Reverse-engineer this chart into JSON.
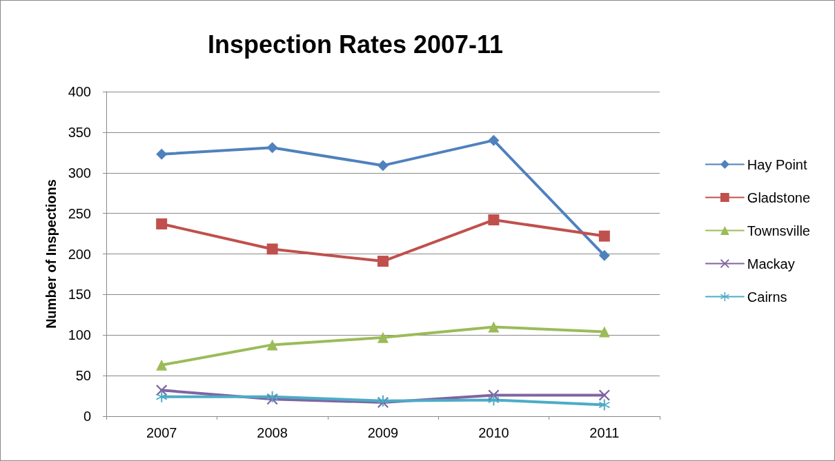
{
  "chart_data": {
    "type": "line",
    "title": "Inspection Rates 2007-11",
    "ylabel": "Number of Inspections",
    "categories": [
      "2007",
      "2008",
      "2009",
      "2010",
      "2011"
    ],
    "series": [
      {
        "name": "Hay Point",
        "color": "#4f81bd",
        "marker": "diamond",
        "values": [
          323,
          331,
          309,
          340,
          198
        ]
      },
      {
        "name": "Gladstone",
        "color": "#c0504d",
        "marker": "square",
        "values": [
          237,
          206,
          191,
          242,
          222
        ]
      },
      {
        "name": "Townsville",
        "color": "#9bbb59",
        "marker": "triangle",
        "values": [
          63,
          88,
          97,
          110,
          104
        ]
      },
      {
        "name": "Mackay",
        "color": "#8064a2",
        "marker": "cross",
        "values": [
          32,
          21,
          17,
          26,
          26
        ]
      },
      {
        "name": "Cairns",
        "color": "#4bacc6",
        "marker": "star",
        "values": [
          24,
          24,
          19,
          20,
          14
        ]
      }
    ],
    "ylim": [
      0,
      400
    ],
    "yticks": [
      0,
      50,
      100,
      150,
      200,
      250,
      300,
      350,
      400
    ],
    "grid": "y",
    "legend": "right",
    "line_style": "solid"
  }
}
